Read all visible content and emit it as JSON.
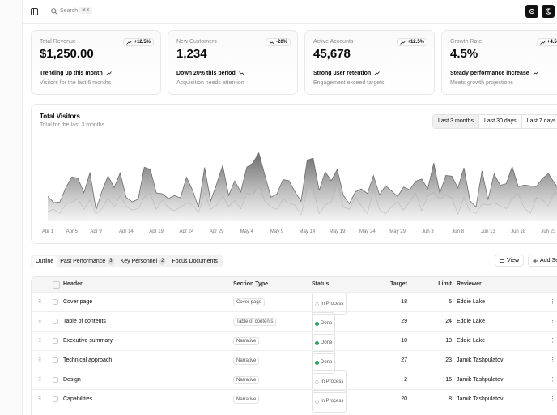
{
  "header": {
    "search": "Search",
    "shortcut": "⌘ K"
  },
  "cards": [
    {
      "title": "Total Revenue",
      "value": "$1,250.00",
      "badge": "+12.5%",
      "trend": "Trending up this month",
      "note": "Visitors for the last 6 months"
    },
    {
      "title": "New Customers",
      "value": "1,234",
      "badge": "-20%",
      "trend": "Down 20% this period",
      "note": "Acquisition needs attention"
    },
    {
      "title": "Active Accounts",
      "value": "45,678",
      "badge": "+12.5%",
      "trend": "Strong user retention",
      "note": "Engagement exceed targets"
    },
    {
      "title": "Growth Rate",
      "value": "4.5%",
      "badge": "+4.5%",
      "trend": "Steady performance increase",
      "note": "Meets growth projections"
    }
  ],
  "chart_data": {
    "type": "area",
    "title": "Total Visitors",
    "subtitle": "Total for the last 3 months",
    "ranges": [
      "Last 3 months",
      "Last 30 days",
      "Last 7 days"
    ],
    "stacked": true,
    "ylim": [
      0,
      1100
    ],
    "categories": [
      "Apr 1",
      null,
      null,
      null,
      "Apr 5",
      null,
      null,
      null,
      "Apr 9",
      null,
      null,
      null,
      null,
      "Apr 14",
      null,
      null,
      null,
      null,
      "Apr 19",
      null,
      null,
      null,
      null,
      "Apr 24",
      null,
      null,
      null,
      null,
      "Apr 29",
      null,
      null,
      null,
      null,
      "May 4",
      null,
      null,
      null,
      null,
      "May 9",
      null,
      null,
      null,
      null,
      "May 14",
      null,
      null,
      null,
      null,
      "May 19",
      null,
      null,
      null,
      null,
      "May 24",
      null,
      null,
      null,
      null,
      "May 29",
      null,
      null,
      null,
      null,
      "Jun 3",
      null,
      null,
      null,
      null,
      "Jun 8",
      null,
      null,
      null,
      null,
      "Jun 13",
      null,
      null,
      null,
      null,
      "Jun 18",
      null,
      null,
      null,
      null,
      "Jun 23",
      null,
      null,
      null,
      null,
      "Jun 28",
      null,
      null
    ],
    "series": [
      {
        "color": "#b5b5b5",
        "values": [
          150,
          180,
          120,
          260,
          290,
          340,
          180,
          320,
          110,
          190,
          350,
          210,
          380,
          220,
          170,
          190,
          360,
          410,
          180,
          320,
          200,
          160,
          210,
          270,
          250,
          130,
          420,
          180,
          240,
          380,
          220,
          310,
          190,
          420,
          390,
          520,
          300,
          210,
          180,
          330,
          270,
          240,
          100,
          460,
          470,
          120,
          240,
          290,
          540,
          210,
          180,
          360,
          230,
          120,
          480,
          180,
          110,
          220,
          290,
          170,
          290,
          420,
          160,
          380,
          430,
          330,
          390,
          350,
          110,
          360,
          150,
          120,
          260,
          240,
          280,
          230,
          190,
          340,
          410,
          200,
          120,
          350,
          320,
          230,
          440,
          320,
          150,
          410,
          370,
          240,
          310
        ]
      },
      {
        "color": "#6e6e6e",
        "values": [
          222,
          97,
          167,
          242,
          373,
          301,
          245,
          409,
          59,
          261,
          327,
          292,
          342,
          137,
          120,
          138,
          446,
          364,
          243,
          89,
          137,
          224,
          138,
          387,
          215,
          75,
          383,
          122,
          315,
          454,
          165,
          293,
          247,
          385,
          481,
          498,
          388,
          149,
          227,
          293,
          335,
          197,
          197,
          448,
          473,
          338,
          499,
          315,
          235,
          177,
          82,
          81,
          252,
          294,
          201,
          213,
          420,
          233,
          78,
          340,
          178,
          178,
          470,
          103,
          439,
          88,
          294,
          323,
          385,
          438,
          155,
          92,
          492,
          81,
          426,
          307,
          371,
          475,
          107,
          341,
          408,
          169,
          317,
          480,
          132,
          141,
          434,
          448,
          149,
          103,
          446
        ]
      }
    ]
  },
  "tabs": [
    {
      "label": "Outline"
    },
    {
      "label": "Past Performance",
      "count": "3"
    },
    {
      "label": "Key Personnel",
      "count": "2"
    },
    {
      "label": "Focus Documents"
    }
  ],
  "actions": [
    "View",
    "Add Section"
  ],
  "table": {
    "columns": [
      "Header",
      "Section Type",
      "Status",
      "Target",
      "Limit",
      "Reviewer"
    ],
    "rows": [
      [
        "Cover page",
        "Cover page",
        "In Process",
        "18",
        "5",
        "Eddie Lake"
      ],
      [
        "Table of contents",
        "Table of contents",
        "Done",
        "29",
        "24",
        "Eddie Lake"
      ],
      [
        "Executive summary",
        "Narrative",
        "Done",
        "10",
        "13",
        "Eddie Lake"
      ],
      [
        "Technical approach",
        "Narrative",
        "Done",
        "27",
        "23",
        "Jamik Tashpulatov"
      ],
      [
        "Design",
        "Narrative",
        "In Process",
        "2",
        "16",
        "Jamik Tashpulatov"
      ],
      [
        "Capabilities",
        "Narrative",
        "In Process",
        "20",
        "8",
        "Jamik Tashpulatov"
      ]
    ]
  }
}
